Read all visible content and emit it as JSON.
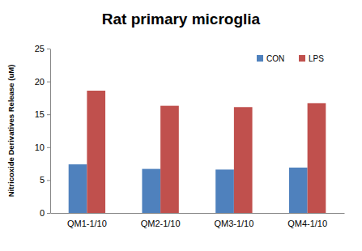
{
  "chart_data": {
    "type": "bar",
    "title": "Rat primary microglia",
    "y_label": "Nitricoxide Derivatives Release (uM)",
    "categories": [
      "QM1-1/10",
      "QM2-1/10",
      "QM3-1/10",
      "QM4-1/10"
    ],
    "series": [
      {
        "name": "CON",
        "color": "#4f81bd",
        "values": [
          7.4,
          6.7,
          6.6,
          6.9
        ]
      },
      {
        "name": "LPS",
        "color": "#c0504d",
        "values": [
          18.6,
          16.3,
          16.1,
          16.7
        ]
      }
    ],
    "ylim": [
      0,
      25
    ],
    "yticks": [
      0,
      5,
      10,
      15,
      20,
      25
    ],
    "grid": false,
    "legend": "top-right"
  }
}
